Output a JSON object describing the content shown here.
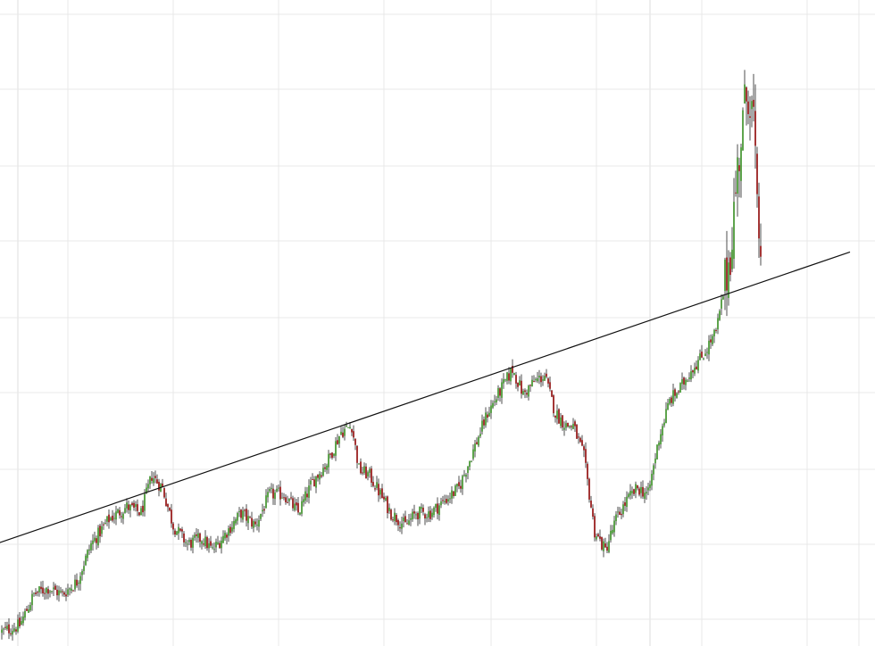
{
  "chart_data": {
    "type": "candlestick",
    "title": "",
    "xlabel": "",
    "ylabel": "",
    "grid": true,
    "ylim": [
      0,
      100
    ],
    "colors": {
      "up": "#4c9a3a",
      "down": "#9b2020",
      "wick": "#222222",
      "grid": "#e9e9e9",
      "trendline": "#111111"
    },
    "anchors": [
      [
        0,
        2
      ],
      [
        10,
        3
      ],
      [
        18,
        8
      ],
      [
        26,
        9
      ],
      [
        34,
        8
      ],
      [
        42,
        10
      ],
      [
        50,
        16
      ],
      [
        60,
        20
      ],
      [
        70,
        22
      ],
      [
        78,
        21
      ],
      [
        84,
        27
      ],
      [
        90,
        25
      ],
      [
        96,
        19
      ],
      [
        104,
        16
      ],
      [
        112,
        17
      ],
      [
        118,
        15
      ],
      [
        126,
        18
      ],
      [
        134,
        21
      ],
      [
        142,
        19
      ],
      [
        150,
        24
      ],
      [
        158,
        24
      ],
      [
        166,
        21
      ],
      [
        174,
        26
      ],
      [
        182,
        29
      ],
      [
        190,
        34
      ],
      [
        196,
        35
      ],
      [
        200,
        28
      ],
      [
        206,
        27
      ],
      [
        212,
        24
      ],
      [
        218,
        21
      ],
      [
        226,
        19
      ],
      [
        232,
        21
      ],
      [
        240,
        21
      ],
      [
        248,
        23
      ],
      [
        256,
        25
      ],
      [
        264,
        31
      ],
      [
        272,
        37
      ],
      [
        280,
        41
      ],
      [
        286,
        44
      ],
      [
        292,
        40
      ],
      [
        298,
        42
      ],
      [
        304,
        43
      ],
      [
        310,
        37
      ],
      [
        316,
        35
      ],
      [
        320,
        35
      ],
      [
        326,
        30
      ],
      [
        332,
        18
      ],
      [
        338,
        15
      ],
      [
        344,
        20
      ],
      [
        350,
        23
      ],
      [
        356,
        25
      ],
      [
        362,
        24
      ],
      [
        368,
        33
      ],
      [
        374,
        39
      ],
      [
        380,
        41
      ],
      [
        386,
        44
      ],
      [
        392,
        46
      ],
      [
        396,
        48
      ],
      [
        400,
        50
      ],
      [
        404,
        56
      ],
      [
        408,
        63
      ],
      [
        412,
        76
      ],
      [
        416,
        86
      ],
      [
        418,
        89
      ],
      [
        421,
        84
      ],
      [
        423,
        68
      ],
      [
        425,
        64
      ]
    ],
    "trendline": {
      "start": [
        -6,
        15.8
      ],
      "end": [
        475,
        62.8
      ]
    },
    "n_candles": 426
  }
}
